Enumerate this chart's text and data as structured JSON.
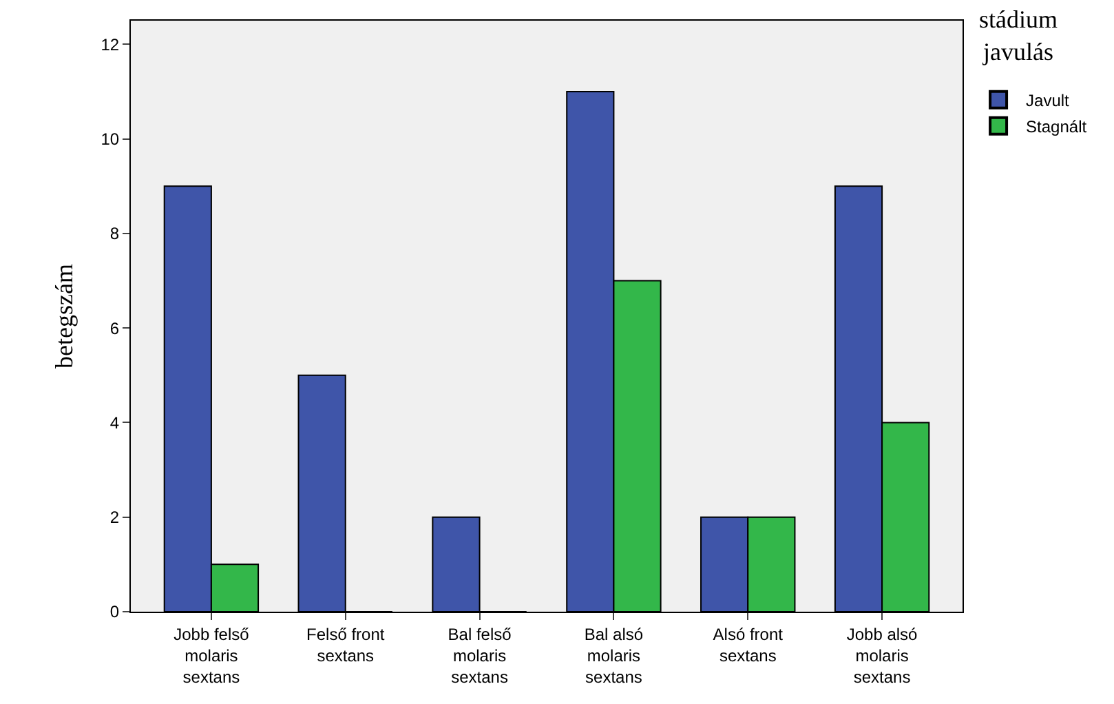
{
  "chart_data": {
    "type": "bar",
    "ylabel": "betegszám",
    "legend_title": "stádium\njavulás",
    "categories": [
      "Jobb felső\nmolaris\nsextans",
      "Felső front\nsextans",
      "Bal felső\nmolaris\nsextans",
      "Bal alsó\nmolaris\nsextans",
      "Alsó front\nsextans",
      "Jobb alsó\nmolaris\nsextans"
    ],
    "series": [
      {
        "name": "Javult",
        "color": "#3f55a9",
        "values": [
          9,
          5,
          2,
          11,
          2,
          9
        ]
      },
      {
        "name": "Stagnált",
        "color": "#33b74a",
        "values": [
          1,
          0,
          0,
          7,
          2,
          4
        ]
      }
    ],
    "ylim": [
      0,
      12.5
    ],
    "yticks": [
      0,
      2,
      4,
      6,
      8,
      10,
      12
    ],
    "grid": false,
    "legend": "top right"
  }
}
